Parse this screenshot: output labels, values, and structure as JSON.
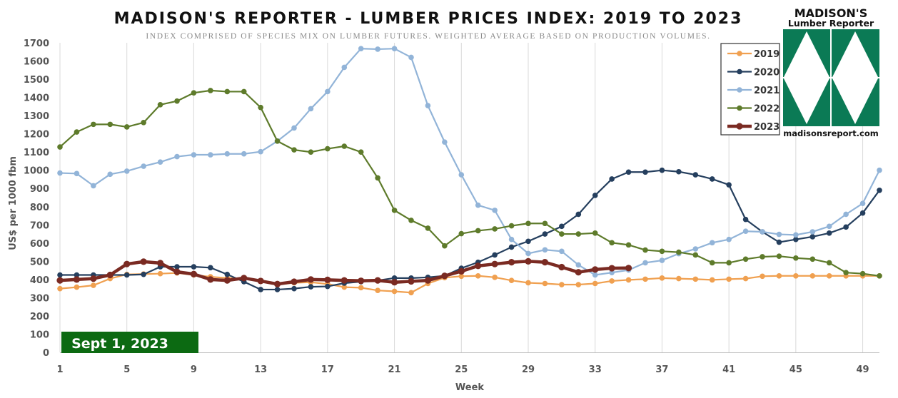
{
  "chart_data": {
    "type": "line",
    "title": "MADISON'S REPORTER - LUMBER PRICES INDEX: 2019 TO 2023",
    "subtitle": "INDEX COMPRISED OF SPECIES MIX ON LUMBER FUTURES. WEIGHTED AVERAGE BASED ON PRODUCTION VOLUMES.",
    "xlabel": "Week",
    "ylabel": "US$ per 1000 fbm",
    "xlim": [
      1,
      50
    ],
    "ylim": [
      0,
      1700
    ],
    "x_ticks": [
      "1",
      "5",
      "9",
      "13",
      "17",
      "21",
      "25",
      "29",
      "33",
      "37",
      "41",
      "45",
      "49"
    ],
    "y_ticks": [
      "0",
      "100",
      "200",
      "300",
      "400",
      "500",
      "600",
      "700",
      "800",
      "900",
      "1000",
      "1100",
      "1200",
      "1300",
      "1400",
      "1500",
      "1600",
      "1700"
    ],
    "grid": "vertical",
    "legend_position": "top-right",
    "badge": "Sept 1, 2023",
    "series": [
      {
        "name": "2019",
        "color": "#f0a050",
        "values": [
          350,
          358,
          368,
          405,
          428,
          430,
          432,
          436,
          425,
          415,
          408,
          405,
          390,
          372,
          382,
          385,
          375,
          358,
          355,
          340,
          335,
          328,
          378,
          410,
          418,
          420,
          412,
          395,
          382,
          378,
          372,
          372,
          378,
          392,
          398,
          402,
          408,
          405,
          402,
          398,
          402,
          405,
          418,
          420,
          420,
          420,
          420,
          420,
          420,
          420
        ]
      },
      {
        "name": "2020",
        "color": "#253f5e",
        "values": [
          425,
          425,
          425,
          425,
          425,
          428,
          470,
          470,
          470,
          465,
          428,
          388,
          345,
          345,
          350,
          360,
          362,
          380,
          388,
          395,
          408,
          408,
          412,
          420,
          462,
          495,
          535,
          578,
          610,
          650,
          692,
          758,
          862,
          952,
          990,
          990,
          1000,
          992,
          975,
          952,
          920,
          730,
          662,
          605,
          620,
          635,
          655,
          688,
          765,
          890
        ]
      },
      {
        "name": "2021",
        "color": "#92b4d8",
        "values": [
          985,
          982,
          915,
          978,
          995,
          1022,
          1045,
          1075,
          1085,
          1085,
          1090,
          1090,
          1102,
          1160,
          1232,
          1338,
          1432,
          1565,
          1668,
          1665,
          1668,
          1620,
          1355,
          1155,
          975,
          808,
          780,
          620,
          543,
          563,
          555,
          480,
          425,
          438,
          452,
          492,
          505,
          542,
          568,
          602,
          620,
          665,
          662,
          648,
          645,
          662,
          692,
          758,
          818,
          1000
        ]
      },
      {
        "name": "2022",
        "color": "#5e7b2b",
        "values": [
          1128,
          1210,
          1252,
          1252,
          1238,
          1262,
          1360,
          1380,
          1425,
          1438,
          1432,
          1432,
          1345,
          1160,
          1112,
          1100,
          1118,
          1132,
          1100,
          958,
          780,
          725,
          682,
          585,
          652,
          668,
          678,
          695,
          708,
          708,
          650,
          650,
          655,
          602,
          590,
          562,
          555,
          550,
          535,
          492,
          492,
          512,
          525,
          528,
          518,
          512,
          492,
          438,
          432,
          420
        ]
      },
      {
        "name": "2023",
        "color": "#7a2a22",
        "values": [
          395,
          400,
          405,
          425,
          485,
          498,
          490,
          442,
          430,
          400,
          395,
          408,
          392,
          375,
          388,
          400,
          398,
          395,
          393,
          395,
          385,
          390,
          395,
          420,
          445,
          475,
          485,
          495,
          500,
          495,
          468,
          440,
          455,
          462,
          463
        ]
      }
    ]
  },
  "logo": {
    "line1": "MADISON'S",
    "line2": "Lumber Reporter",
    "url": "madisonsreport.com",
    "color": "#0b7a55"
  }
}
